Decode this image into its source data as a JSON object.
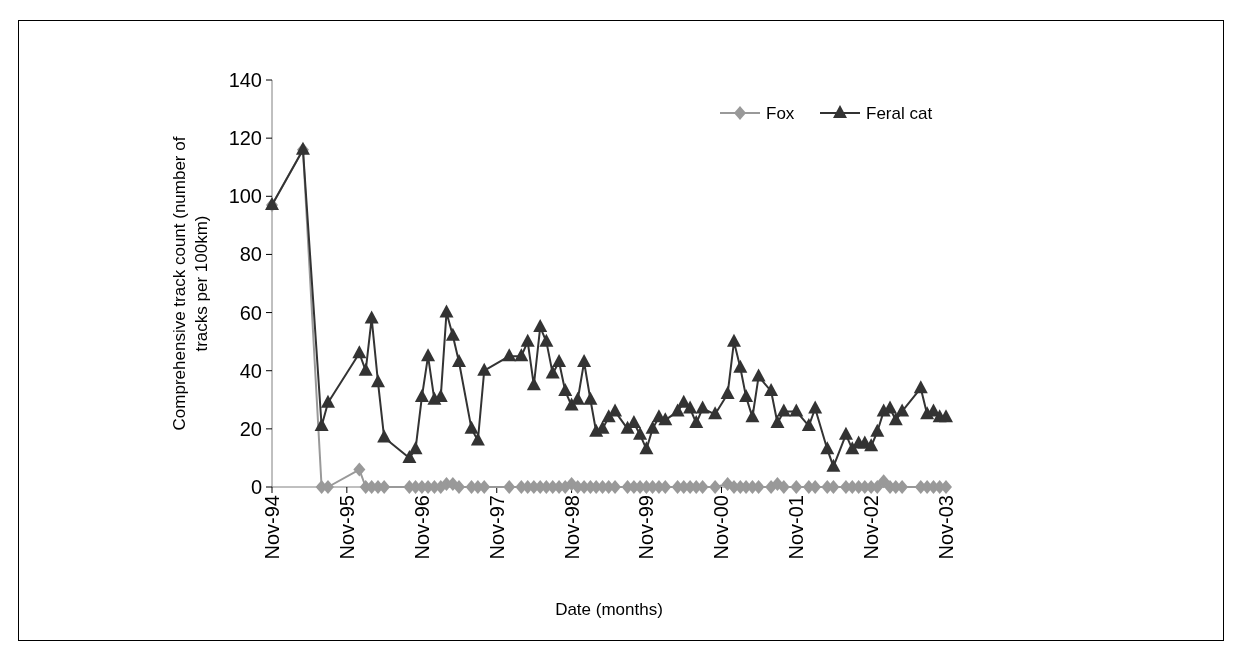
{
  "chart_data": {
    "type": "line",
    "xlabel": "Date (months)",
    "ylabel": "Comprehensive track count (number of tracks per 100km)",
    "x": [
      "1994-11",
      "1995-04",
      "1995-07",
      "1995-08",
      "1996-01",
      "1996-02",
      "1996-03",
      "1996-04",
      "1996-05",
      "1996-09",
      "1996-10",
      "1996-11",
      "1996-12",
      "1997-01",
      "1997-02",
      "1997-03",
      "1997-04",
      "1997-05",
      "1997-07",
      "1997-08",
      "1997-09",
      "1998-01",
      "1998-03",
      "1998-04",
      "1998-05",
      "1998-06",
      "1998-07",
      "1998-08",
      "1998-09",
      "1998-10",
      "1998-11",
      "1998-12",
      "1999-01",
      "1999-02",
      "1999-03",
      "1999-04",
      "1999-05",
      "1999-06",
      "1999-08",
      "1999-09",
      "1999-10",
      "1999-11",
      "1999-12",
      "2000-01",
      "2000-02",
      "2000-04",
      "2000-05",
      "2000-06",
      "2000-07",
      "2000-08",
      "2000-10",
      "2000-12",
      "2001-01",
      "2001-02",
      "2001-03",
      "2001-04",
      "2001-05",
      "2001-07",
      "2001-08",
      "2001-09",
      "2001-11",
      "2002-01",
      "2002-02",
      "2002-04",
      "2002-05",
      "2002-07",
      "2002-08",
      "2002-09",
      "2002-10",
      "2002-11",
      "2002-12",
      "2003-01",
      "2003-02",
      "2003-03",
      "2003-04",
      "2003-07",
      "2003-08",
      "2003-09",
      "2003-10",
      "2003-11"
    ],
    "series": [
      {
        "name": "Fox",
        "color": "#999999",
        "marker": "diamond",
        "values": [
          97,
          116,
          0,
          0,
          6,
          0,
          0,
          0,
          0,
          0,
          0,
          0,
          0,
          0,
          0,
          1,
          1,
          0,
          0,
          0,
          0,
          0,
          0,
          0,
          0,
          0,
          0,
          0,
          0,
          0,
          1,
          0,
          0,
          0,
          0,
          0,
          0,
          0,
          0,
          0,
          0,
          0,
          0,
          0,
          0,
          0,
          0,
          0,
          0,
          0,
          0,
          1,
          0,
          0,
          0,
          0,
          0,
          0,
          1,
          0,
          0,
          0,
          0,
          0,
          0,
          0,
          0,
          0,
          0,
          0,
          0,
          2,
          0,
          0,
          0,
          0,
          0,
          0,
          0,
          0
        ]
      },
      {
        "name": "Feral cat",
        "color": "#333333",
        "marker": "triangle",
        "values": [
          97,
          116,
          21,
          29,
          46,
          40,
          58,
          36,
          17,
          10,
          13,
          31,
          45,
          30,
          31,
          60,
          52,
          43,
          20,
          16,
          40,
          45,
          45,
          50,
          35,
          55,
          50,
          39,
          43,
          33,
          28,
          30,
          43,
          30,
          19,
          20,
          24,
          26,
          20,
          22,
          18,
          13,
          20,
          24,
          23,
          26,
          29,
          27,
          22,
          27,
          25,
          32,
          50,
          41,
          31,
          24,
          38,
          33,
          22,
          26,
          26,
          21,
          27,
          13,
          7,
          18,
          13,
          15,
          15,
          14,
          19,
          26,
          27,
          23,
          26,
          34,
          25,
          26,
          24,
          24
        ]
      }
    ],
    "xlim": [
      "1994-11",
      "2003-11"
    ],
    "xticks": [
      {
        "value": "1994-11",
        "label": "Nov-94"
      },
      {
        "value": "1995-11",
        "label": "Nov-95"
      },
      {
        "value": "1996-11",
        "label": "Nov-96"
      },
      {
        "value": "1997-11",
        "label": "Nov-97"
      },
      {
        "value": "1998-11",
        "label": "Nov-98"
      },
      {
        "value": "1999-11",
        "label": "Nov-99"
      },
      {
        "value": "2000-11",
        "label": "Nov-00"
      },
      {
        "value": "2001-11",
        "label": "Nov-01"
      },
      {
        "value": "2002-11",
        "label": "Nov-02"
      },
      {
        "value": "2003-11",
        "label": "Nov-03"
      }
    ],
    "ylim": [
      0,
      140
    ],
    "yticks": [
      0,
      20,
      40,
      60,
      80,
      100,
      120,
      140
    ],
    "legend": "top right"
  }
}
